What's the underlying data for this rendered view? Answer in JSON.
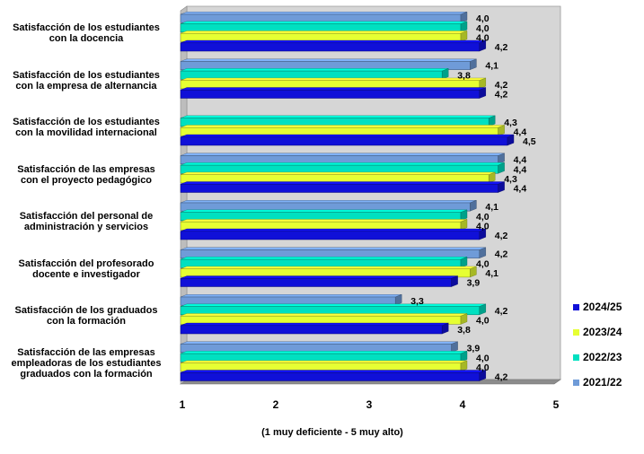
{
  "chart_data": {
    "type": "bar",
    "orientation": "horizontal",
    "title": "",
    "xlabel": "(1 muy deficiente - 5 muy alto)",
    "ylabel": "",
    "xlim": [
      1,
      5
    ],
    "xticks": [
      "1",
      "2",
      "3",
      "4",
      "5"
    ],
    "grid": false,
    "legend_position": "right",
    "categories": [
      "Satisfacción de los estudiantes\ncon la docencia",
      "Satisfacción de los estudiantes\ncon la empresa de alternancia",
      "Satisfacción de los estudiantes\ncon la movilidad internacional",
      "Satisfacción de las empresas\ncon el proyecto pedagógico",
      "Satisfacción del personal de\nadministración y servicios",
      "Satisfacción del profesorado\ndocente e investigador",
      "Satisfacción de los graduados\ncon la formación",
      "Satisfacción de las empresas\nempleadoras de los estudiantes\ngraduados con la formación"
    ],
    "series": [
      {
        "name": "2021/22",
        "color": "#6f9bd8",
        "values": [
          4.0,
          4.1,
          null,
          4.4,
          4.1,
          4.2,
          3.3,
          3.9
        ],
        "labels": [
          "4,0",
          "4,1",
          "",
          "4,4",
          "4,1",
          "4,2",
          "3,3",
          "3,9"
        ]
      },
      {
        "name": "2022/23",
        "color": "#00e0c0",
        "values": [
          4.0,
          3.8,
          4.3,
          4.4,
          4.0,
          4.0,
          4.2,
          4.0
        ],
        "labels": [
          "4,0",
          "3,8",
          "4,3",
          "4,4",
          "4,0",
          "4,0",
          "4,2",
          "4,0"
        ]
      },
      {
        "name": "2023/24",
        "color": "#e6ff33",
        "values": [
          4.0,
          4.2,
          4.4,
          4.3,
          4.0,
          4.1,
          4.0,
          4.0
        ],
        "labels": [
          "4,0",
          "4,2",
          "4,4",
          "4,3",
          "4,0",
          "4,1",
          "4,0",
          "4,0"
        ]
      },
      {
        "name": "2024/25",
        "color": "#1010d8",
        "values": [
          4.2,
          4.2,
          4.5,
          4.4,
          4.2,
          3.9,
          3.8,
          4.2
        ],
        "labels": [
          "4,2",
          "4,2",
          "4,5",
          "4,4",
          "4,2",
          "3,9",
          "3,8",
          "4,2"
        ]
      }
    ],
    "legend_order": [
      "2024/25",
      "2023/24",
      "2022/23",
      "2021/22"
    ]
  }
}
